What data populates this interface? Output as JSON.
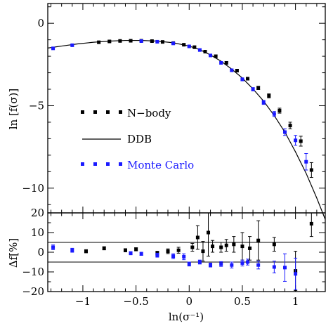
{
  "chart_data": [
    {
      "type": "scatter",
      "panel": "top",
      "ylabel": "ln [f(σ)]",
      "xlim": [
        -1.33,
        1.28
      ],
      "ylim": [
        -11.5,
        1.2
      ],
      "xticks": [
        -1,
        -0.5,
        0,
        0.5,
        1
      ],
      "yticks": [
        0,
        -5,
        -10
      ],
      "ytick_labels": [
        "0",
        "−5",
        "−10"
      ],
      "legend_position": "center-left",
      "colors": {
        "nbody": "#000000",
        "ddb": "#000000",
        "mc": "#1a1aff"
      },
      "legend": {
        "nbody": "N−body",
        "ddb": "DDB",
        "mc": "Monte Carlo"
      },
      "ddb_curve": {
        "x": [
          -1.33,
          -1.2,
          -1.05,
          -0.9,
          -0.75,
          -0.6,
          -0.45,
          -0.3,
          -0.15,
          0.0,
          0.1,
          0.2,
          0.3,
          0.4,
          0.5,
          0.6,
          0.7,
          0.8,
          0.9,
          1.0,
          1.1,
          1.2,
          1.28
        ],
        "y": [
          -1.5,
          -1.38,
          -1.25,
          -1.15,
          -1.08,
          -1.04,
          -1.04,
          -1.08,
          -1.18,
          -1.38,
          -1.6,
          -1.92,
          -2.3,
          -2.78,
          -3.32,
          -3.98,
          -4.72,
          -5.6,
          -6.6,
          -7.8,
          -9.1,
          -10.6,
          -11.9
        ]
      },
      "nbody": {
        "x": [
          -0.85,
          -0.75,
          -0.65,
          -0.55,
          -0.45,
          -0.35,
          -0.25,
          -0.15,
          -0.05,
          0.05,
          0.15,
          0.25,
          0.35,
          0.45,
          0.55,
          0.65,
          0.75,
          0.85,
          0.95,
          1.05,
          1.15
        ],
        "y": [
          -1.15,
          -1.1,
          -1.07,
          -1.06,
          -1.06,
          -1.08,
          -1.13,
          -1.2,
          -1.3,
          -1.45,
          -1.72,
          -2.0,
          -2.4,
          -2.87,
          -3.36,
          -3.92,
          -4.4,
          -5.3,
          -6.2,
          -7.15,
          -8.9
        ],
        "yerr": [
          0.05,
          0.05,
          0.05,
          0.05,
          0.05,
          0.05,
          0.05,
          0.05,
          0.05,
          0.08,
          0.08,
          0.08,
          0.08,
          0.08,
          0.08,
          0.1,
          0.12,
          0.15,
          0.2,
          0.3,
          0.45
        ]
      },
      "mc": {
        "x": [
          -1.28,
          -1.1,
          -0.45,
          -0.3,
          -0.15,
          0.0,
          0.1,
          0.2,
          0.3,
          0.4,
          0.5,
          0.6,
          0.7,
          0.8,
          0.9,
          1.0,
          1.1
        ],
        "y": [
          -1.52,
          -1.33,
          -1.08,
          -1.12,
          -1.22,
          -1.4,
          -1.62,
          -1.95,
          -2.4,
          -2.85,
          -3.4,
          -4.0,
          -4.8,
          -5.5,
          -6.6,
          -7.1,
          -8.4
        ],
        "yerr": [
          0.04,
          0.04,
          0.04,
          0.05,
          0.05,
          0.05,
          0.06,
          0.06,
          0.07,
          0.08,
          0.09,
          0.1,
          0.12,
          0.15,
          0.2,
          0.3,
          0.5
        ]
      }
    },
    {
      "type": "scatter",
      "panel": "bottom",
      "xlabel": "ln(σ⁻¹)",
      "ylabel": "Δf[%]",
      "xlim": [
        -1.33,
        1.28
      ],
      "ylim": [
        -20,
        20
      ],
      "xticks": [
        -1,
        -0.5,
        0,
        0.5,
        1
      ],
      "xtick_labels": [
        "−1",
        "−0.5",
        "0",
        "0.5",
        "1"
      ],
      "yticks": [
        20,
        10,
        0,
        -10,
        -20
      ],
      "ytick_labels": [
        "20",
        "10",
        "0",
        "−10",
        "−20"
      ],
      "reference_lines": [
        5,
        -5
      ],
      "nbody": {
        "x": [
          -0.97,
          -0.8,
          -0.6,
          -0.5,
          -0.3,
          -0.2,
          -0.1,
          0.03,
          0.08,
          0.13,
          0.18,
          0.22,
          0.3,
          0.35,
          0.42,
          0.5,
          0.57,
          0.65,
          0.8,
          1.0,
          1.15
        ],
        "y": [
          0.5,
          2.0,
          1.0,
          1.5,
          -0.5,
          0.5,
          1.0,
          2.5,
          7.5,
          0.5,
          10.0,
          3.0,
          2.5,
          3.5,
          4.0,
          3.0,
          2.0,
          6.0,
          4.0,
          -9.5,
          14.5
        ],
        "yerr": [
          0.8,
          0.8,
          0.8,
          0.8,
          1.0,
          1.2,
          1.5,
          2.0,
          6.0,
          5.0,
          12.0,
          3.0,
          2.5,
          3.0,
          4.0,
          7.0,
          6.0,
          10.0,
          3.5,
          10.0,
          6.5
        ]
      },
      "mc": {
        "x": [
          -1.28,
          -1.1,
          -0.55,
          -0.45,
          -0.3,
          -0.15,
          -0.05,
          0.0,
          0.1,
          0.2,
          0.3,
          0.4,
          0.5,
          0.55,
          0.65,
          0.8,
          0.9,
          1.0
        ],
        "y": [
          2.5,
          1.0,
          -0.5,
          -0.8,
          -1.5,
          -2.0,
          -2.3,
          -6.0,
          -5.0,
          -6.5,
          -6.0,
          -6.5,
          -5.5,
          -5.0,
          -6.5,
          -7.5,
          -7.8,
          -11.0
        ],
        "yerr": [
          1.2,
          1.0,
          0.8,
          0.8,
          1.0,
          1.2,
          1.5,
          1.0,
          1.0,
          1.0,
          1.2,
          1.5,
          1.5,
          1.5,
          2.0,
          3.0,
          7.0,
          8.0
        ]
      }
    }
  ]
}
